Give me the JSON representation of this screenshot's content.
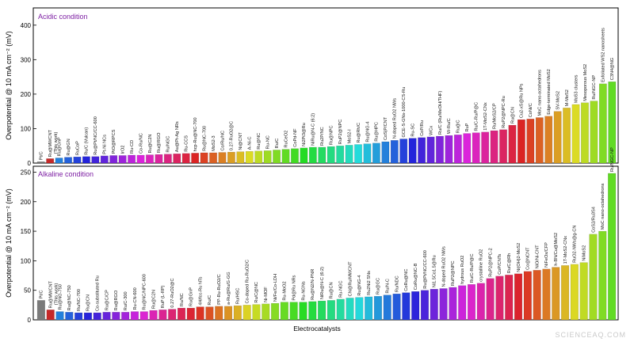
{
  "x_label": "Electrocatalysts",
  "watermark": "SCIENCEAQ.COM",
  "chart_data": [
    {
      "type": "bar",
      "title": "Acidic condition",
      "ylabel": "Overpotential @ 10 mA cm⁻² (mV)",
      "ylim": [
        0,
        450
      ],
      "yticks": [
        0,
        100,
        200,
        300,
        400
      ],
      "grid": false,
      "highlight_label": "(This work)",
      "categories": [
        "Pt/C",
        "Ru@MWCNT",
        "Ru@GnP",
        "Ru@GN",
        "RuCoP",
        "Ru/C (Vulcan)",
        "Ru@Pt/NC/CC-600",
        "Pt-Ni NCs",
        "PtO@RPCS",
        "IrO2",
        "Ru-CD",
        "Co-Ru/NC",
        "Ru@C2N",
        "Ru@RGO",
        "Ru/NGC",
        "Au@Pt-Ag NRs",
        "Ru-CCS",
        "hcp-Ru@NC-700",
        "Ru@NC-700",
        "MoS2-3",
        "Co/Ru/NC",
        "0.27-RuO2@C",
        "Ni@CNT",
        "A-Ni-C",
        "Ru@NC",
        "Ru-NC",
        "Ru/C",
        "RuCeO2",
        "CoPd-NF",
        "Ni2Pt3@Ru",
        "NiRu@N-C (6:2)",
        "Ru2P/NC",
        "Ru@NPC",
        "RuP2@NPC",
        "MoS2-I",
        "Ru@Rh/C",
        "Ru@NG-4",
        "Ru@HPC",
        "CoS|P/CNT",
        "N-doped RuO2 NWs",
        "GCE-S-GNs-1000-CS-Ru",
        "Ru-SC",
        "CoP/Ru",
        "WCx",
        "Ru/C (Ru/MeOH/THF)",
        "W-Ru/C",
        "Ru@C",
        "RuP",
        "Ru/C-Ru/P@C",
        "1T-MoS2-CNx",
        "Ru/MoS2/CP",
        "RuP2@NPC-Ru",
        "Ru@CN",
        "Cu2-xS@Ru NPs",
        "CoNi/C",
        "MoC nano-octahedrons",
        "Edge-terminated MoS2",
        "SV-MoS2",
        "M-MoS2",
        "MoS3 clusters",
        "Mesoporous MoS2",
        "Ru/NGC-NP",
        "Exfoliated WS2 nanosheets",
        "C3N4@NG"
      ],
      "values": [
        4,
        13,
        15,
        17,
        18,
        19,
        19,
        21,
        22,
        22,
        23,
        23,
        24,
        25,
        26,
        27,
        28,
        29,
        30,
        30,
        31,
        32,
        33,
        34,
        35,
        36,
        38,
        40,
        42,
        44,
        46,
        46,
        48,
        50,
        52,
        54,
        56,
        58,
        62,
        66,
        70,
        72,
        74,
        76,
        78,
        80,
        82,
        86,
        88,
        90,
        94,
        97,
        110,
        126,
        128,
        132,
        136,
        150,
        160,
        170,
        175,
        180,
        230,
        236
      ]
    },
    {
      "type": "bar",
      "title": "Alkaline condition",
      "ylabel": "Overpotential @ 10 mA cm⁻² (mV)",
      "ylim": [
        0,
        260
      ],
      "yticks": [
        0,
        50,
        100,
        150,
        200,
        250
      ],
      "grid": false,
      "highlight_label": "(This work)",
      "categories": [
        "Pt/C",
        "Ru@MWCNT",
        "Ru@NG-750",
        "Ru@NC-750",
        "Ru/NC-700",
        "Ru@CN",
        "Co-substituted Ru",
        "Ru@C/CP",
        "Ru@RGO",
        "Ru/C-300",
        "Ru-CN-600",
        "Ru@NC/NPC-600",
        "Ru@C2N",
        "RuP (L-RP)",
        "0.27-RuO2@C",
        "Ru/NC",
        "Ru@GnP",
        "4H/fcc-Ru NTs",
        "Ru/C",
        "PP-Ru-RuO2/C",
        "a-Ru@Ru/G-GG",
        "Ru/HSC",
        "Co-doped Ru-RuO2/C",
        "Ru/C@NC",
        "Ni-MOF",
        "Ni/Fe/Co-LDH",
        "Ru-MoO2",
        "Pd@Ru NRs",
        "Ru-NGNs",
        "Ru@N2/N-PNR",
        "NiRu@N-C (6:2)",
        "Ru@CN",
        "Ru-NGC",
        "CN@Ru/MWCNT",
        "Ru@NG-4",
        "Ru2Ni2 SNs",
        "Ru@GC",
        "Ru/N-C",
        "Ru/NDC",
        "CoRu@NC",
        "CoRu@NC-B",
        "Ru@Pt/NC/CC-600",
        "Ni1.5Co1.5@Ru",
        "N-doped RuO2 NWs",
        "RuP2@NPC",
        "hydrous RuO2",
        "Ru/C-Ru/P@C",
        "crystalline RuO2",
        "RuP2@NPC-2",
        "CoP/CNTs",
        "Ru/C@Rh",
        "Ni(OH)2-MoS2",
        "Co@NCNT",
        "NiO/Ni-CNT",
        "NiFeOx/CFP",
        "h-BN/Cu@MoS2",
        "1T-MoS2-CNx",
        "RuO2-NWs@g-CN",
        "NiMoS2",
        "CoS2/Ru3S4",
        "MoC nano-octahedrons",
        "Ru/NGC-NP"
      ],
      "values": [
        33,
        17,
        14,
        13,
        12,
        12,
        12,
        13,
        13,
        13,
        14,
        14,
        16,
        17,
        18,
        20,
        20,
        22,
        22,
        23,
        23,
        24,
        25,
        26,
        27,
        28,
        30,
        30,
        30,
        31,
        32,
        33,
        35,
        37,
        38,
        39,
        40,
        42,
        44,
        46,
        48,
        50,
        52,
        53,
        55,
        58,
        60,
        62,
        70,
        74,
        76,
        78,
        82,
        84,
        86,
        89,
        92,
        94,
        97,
        145,
        150,
        248
      ]
    }
  ]
}
